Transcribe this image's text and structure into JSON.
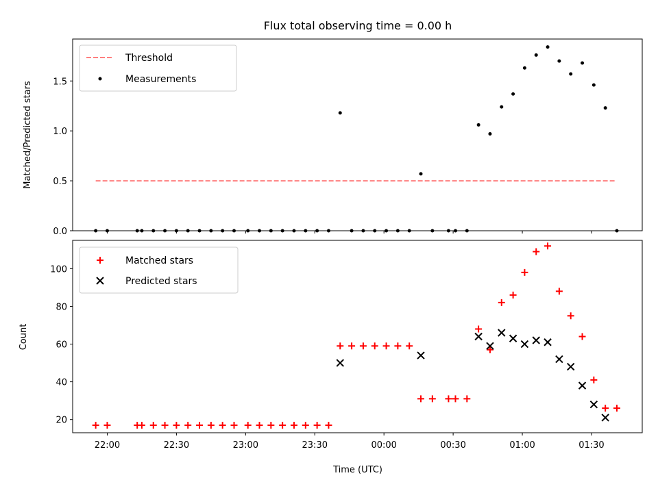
{
  "chart_data": [
    {
      "type": "scatter",
      "title": "Flux total observing time = 0.00 h",
      "xlabel": "",
      "ylabel": "Matched/Predicted stars",
      "xlim": [
        "21:45",
        "01:52"
      ],
      "ylim": [
        0,
        1.92
      ],
      "yticks": [
        0.0,
        0.5,
        1.0,
        1.5
      ],
      "ytick_labels": [
        "0.0",
        "0.5",
        "1.0",
        "1.5"
      ],
      "legend": "top-left",
      "series": [
        {
          "name": "Threshold",
          "kind": "line",
          "style": "dashed",
          "color": "#ff7f7f",
          "x": [
            "21:55",
            "01:40"
          ],
          "y": [
            0.5,
            0.5
          ]
        },
        {
          "name": "Measurements",
          "kind": "scatter",
          "marker": "dot",
          "color": "#000000",
          "x": [
            "21:55",
            "22:00",
            "22:13",
            "22:15",
            "22:20",
            "22:25",
            "22:30",
            "22:35",
            "22:40",
            "22:45",
            "22:50",
            "22:55",
            "23:01",
            "23:06",
            "23:11",
            "23:16",
            "23:21",
            "23:26",
            "23:31",
            "23:36",
            "23:41",
            "23:46",
            "23:51",
            "23:56",
            "24:01",
            "24:06",
            "24:11",
            "24:16",
            "24:21",
            "24:28",
            "24:31",
            "24:36",
            "24:41",
            "24:46",
            "24:51",
            "24:56",
            "25:01",
            "25:06",
            "25:11",
            "25:16",
            "25:21",
            "25:26",
            "25:31",
            "25:36",
            "25:41"
          ],
          "y": [
            0,
            0,
            0,
            0,
            0,
            0,
            0,
            0,
            0,
            0,
            0,
            0,
            0,
            0,
            0,
            0,
            0,
            0,
            0,
            0,
            1.18,
            0,
            0,
            0,
            0,
            0,
            0,
            0.57,
            0,
            0,
            0,
            0,
            1.06,
            0.97,
            1.24,
            1.37,
            1.63,
            1.76,
            1.84,
            1.7,
            1.57,
            1.68,
            1.46,
            1.23,
            0
          ]
        }
      ]
    },
    {
      "type": "scatter",
      "title": "",
      "xlabel": "Time (UTC)",
      "ylabel": "Count",
      "xlim": [
        "21:45",
        "01:52"
      ],
      "ylim": [
        13,
        115
      ],
      "yticks": [
        20,
        40,
        60,
        80,
        100
      ],
      "ytick_labels": [
        "20",
        "40",
        "60",
        "80",
        "100"
      ],
      "xticks": [
        "22:00",
        "22:30",
        "23:00",
        "23:30",
        "00:00",
        "00:30",
        "01:00",
        "01:30"
      ],
      "legend": "top-left",
      "series": [
        {
          "name": "Matched stars",
          "marker": "plus",
          "color": "#ff0000",
          "x": [
            "21:55",
            "22:00",
            "22:13",
            "22:15",
            "22:20",
            "22:25",
            "22:30",
            "22:35",
            "22:40",
            "22:45",
            "22:50",
            "22:55",
            "23:01",
            "23:06",
            "23:11",
            "23:16",
            "23:21",
            "23:26",
            "23:31",
            "23:36",
            "23:41",
            "23:46",
            "23:51",
            "23:56",
            "24:01",
            "24:06",
            "24:11",
            "24:16",
            "24:21",
            "24:28",
            "24:31",
            "24:36",
            "24:41",
            "24:46",
            "24:51",
            "24:56",
            "25:01",
            "25:06",
            "25:11",
            "25:16",
            "25:21",
            "25:26",
            "25:31",
            "25:36",
            "25:41"
          ],
          "y": [
            17,
            17,
            17,
            17,
            17,
            17,
            17,
            17,
            17,
            17,
            17,
            17,
            17,
            17,
            17,
            17,
            17,
            17,
            17,
            17,
            59,
            59,
            59,
            59,
            59,
            59,
            59,
            31,
            31,
            31,
            31,
            31,
            68,
            57,
            82,
            86,
            98,
            109,
            112,
            88,
            75,
            64,
            41,
            26,
            26
          ]
        },
        {
          "name": "Predicted stars",
          "marker": "x",
          "color": "#000000",
          "x": [
            "23:41",
            "24:16",
            "24:41",
            "24:46",
            "24:51",
            "24:56",
            "25:01",
            "25:06",
            "25:11",
            "25:16",
            "25:21",
            "25:26",
            "25:31",
            "25:36"
          ],
          "y": [
            50,
            54,
            64,
            59,
            66,
            63,
            60,
            62,
            61,
            52,
            48,
            38,
            28,
            21
          ]
        }
      ]
    }
  ]
}
